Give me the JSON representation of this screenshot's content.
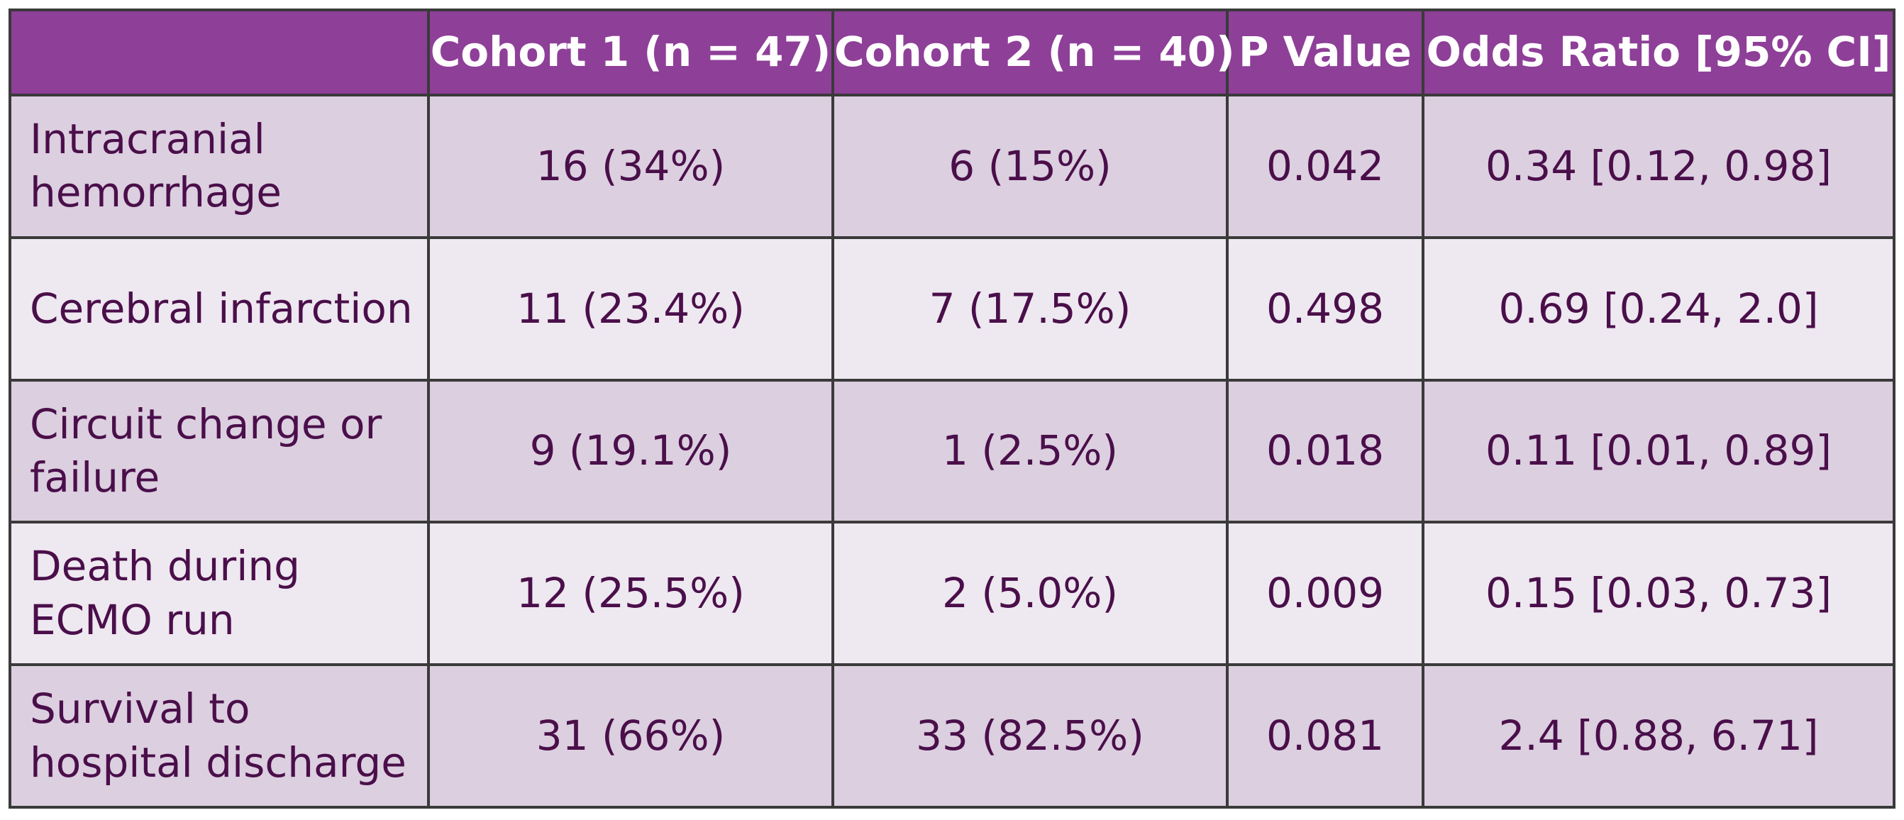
{
  "chart_data": {
    "type": "table",
    "columns": [
      "",
      "Cohort 1 (n = 47)",
      "Cohort 2 (n = 40)",
      "P Value",
      "Odds Ratio [95% CI]"
    ],
    "rows": [
      [
        "Intracranial hemorrhage",
        "16 (34%)",
        "6 (15%)",
        "0.042",
        "0.34 [0.12, 0.98]"
      ],
      [
        "Cerebral infarction",
        "11 (23.4%)",
        "7 (17.5%)",
        "0.498",
        "0.69 [0.24, 2.0]"
      ],
      [
        "Circuit change or failure",
        "9 (19.1%)",
        "1 (2.5%)",
        "0.018",
        "0.11 [0.01, 0.89]"
      ],
      [
        "Death during ECMO run",
        "12 (25.5%)",
        "2 (5.0%)",
        "0.009",
        "0.15 [0.03, 0.73]"
      ],
      [
        "Survival to hospital discharge",
        "31 (66%)",
        "33 (82.5%)",
        "0.081",
        "2.4 [0.88, 6.71]"
      ]
    ]
  },
  "colors": {
    "header_bg": "#8e3f98",
    "header_text": "#ffffff",
    "row_odd_bg": "#dccfe0",
    "row_even_bg": "#eee8f0",
    "body_text": "#4a0f4a",
    "border": "#3a3a3a"
  }
}
